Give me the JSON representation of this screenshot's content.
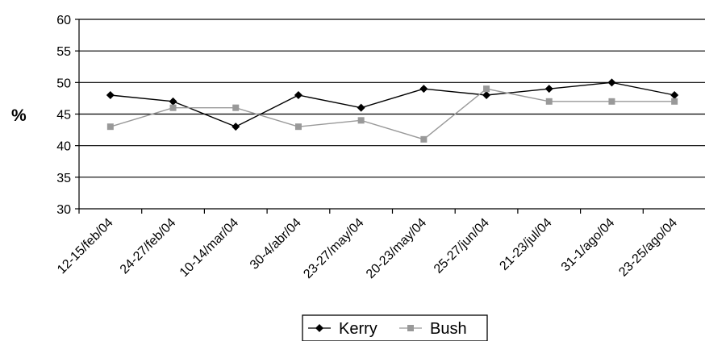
{
  "chart_data": {
    "type": "line",
    "ylabel": "%",
    "ylim": [
      30,
      60
    ],
    "y_ticks": [
      30,
      35,
      40,
      45,
      50,
      55,
      60
    ],
    "grid": true,
    "legend_position": "bottom",
    "categories": [
      "12-15/feb/04",
      "24-27/feb/04",
      "10-14/mar/04",
      "30-4/abr/04",
      "23-27/may/04",
      "20-23/may/04",
      "25-27/jun/04",
      "21-23/jul/04",
      "31-1/ago/04",
      "23-25/ago/04"
    ],
    "series": [
      {
        "name": "Kerry",
        "color": "#000000",
        "marker": "diamond",
        "values": [
          48,
          47,
          43,
          48,
          46,
          49,
          48,
          49,
          50,
          48
        ]
      },
      {
        "name": "Bush",
        "color": "#999999",
        "marker": "square",
        "values": [
          43,
          46,
          46,
          43,
          44,
          41,
          49,
          47,
          47,
          47
        ]
      }
    ]
  }
}
